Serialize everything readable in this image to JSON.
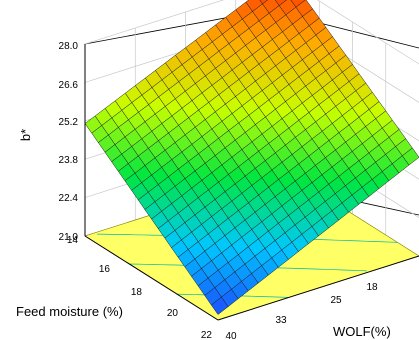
{
  "chart_data": {
    "type": "surface3d",
    "title": "",
    "zlabel": "b*",
    "xlabel": "WOLF(%)",
    "ylabel": "Feed moisture (%)",
    "z_ticks": [
      "21.0",
      "22.4",
      "23.8",
      "25.2",
      "26.6",
      "28.0"
    ],
    "x_ticks": [
      "18",
      "25",
      "33",
      "40"
    ],
    "y_ticks": [
      "14",
      "16",
      "18",
      "20",
      "22"
    ],
    "zlim": [
      21.0,
      28.0
    ],
    "xlim": [
      10,
      40
    ],
    "ylim": [
      14,
      22
    ],
    "surface_corners": {
      "wolf40_moist22": 21.2,
      "wolf10_moist22": 24.6,
      "wolf40_moist14": 25.1,
      "wolf10_moist14": 28.3
    },
    "floor_contour_color": "#ffff66",
    "colormap": [
      "#1a4dff",
      "#00c8ff",
      "#00e640",
      "#c8ff00",
      "#ffaa00",
      "#ff2000"
    ]
  }
}
